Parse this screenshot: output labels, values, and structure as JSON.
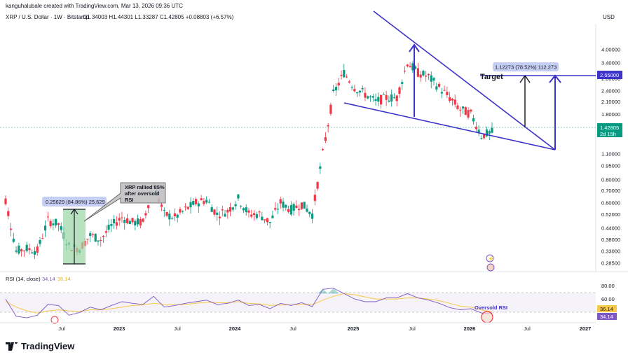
{
  "header": {
    "credit": "kanguhalubale created with TradingView.com, Mar 13, 2026 09:36 UTC",
    "symbol": "XRP / U.S. Dollar · 1W · Bitstamp",
    "ohlc": "O1.34003  H1.44301  L1.33287  C1.42805  +0.08803 (+6.57%)",
    "currency": "USD"
  },
  "chart_data": [
    {
      "type": "candlestick",
      "title": "XRP / U.S. Dollar · 1W · Bitstamp",
      "yscale": "log",
      "ylim": [
        0.26,
        5.5
      ],
      "ytick_labels": [
        "4.00000",
        "3.40000",
        "2.80000",
        "2.40000",
        "2.10000",
        "1.80000",
        "1.50000",
        "1.10000",
        "0.95000",
        "0.80000",
        "0.70000",
        "0.60000",
        "0.52000",
        "0.44000",
        "0.38000",
        "0.33000",
        "0.28500"
      ],
      "xtick_labels": [
        "Jul",
        "2023",
        "Jul",
        "2024",
        "Jul",
        "2025",
        "Jul",
        "2026",
        "Jul",
        "2027"
      ],
      "x": [
        "2022-05",
        "2022-06",
        "2022-07",
        "2022-08",
        "2022-09",
        "2022-10",
        "2022-11",
        "2022-12",
        "2023-01",
        "2023-02",
        "2023-03",
        "2023-04",
        "2023-05",
        "2023-06",
        "2023-07",
        "2023-08",
        "2023-09",
        "2023-10",
        "2023-11",
        "2023-12",
        "2024-01",
        "2024-02",
        "2024-03",
        "2024-04",
        "2024-05",
        "2024-06",
        "2024-07",
        "2024-08",
        "2024-09",
        "2024-10",
        "2024-11",
        "2024-12",
        "2025-01",
        "2025-02",
        "2025-03",
        "2025-04",
        "2025-05",
        "2025-06",
        "2025-07",
        "2025-08",
        "2025-09",
        "2025-10",
        "2025-11",
        "2025-12",
        "2026-01",
        "2026-02",
        "2026-03"
      ],
      "close": [
        0.62,
        0.33,
        0.34,
        0.33,
        0.48,
        0.46,
        0.35,
        0.34,
        0.4,
        0.38,
        0.45,
        0.5,
        0.47,
        0.47,
        0.75,
        0.52,
        0.5,
        0.55,
        0.6,
        0.62,
        0.52,
        0.54,
        0.63,
        0.52,
        0.52,
        0.47,
        0.6,
        0.55,
        0.59,
        0.52,
        1.1,
        2.3,
        3.0,
        2.5,
        2.3,
        2.1,
        2.2,
        2.2,
        3.4,
        3.0,
        2.85,
        2.5,
        2.2,
        1.9,
        1.8,
        1.38,
        1.43
      ],
      "last_price": "1.42805",
      "countdown": "2d 15h",
      "target_price": "2.55000",
      "measure_top": {
        "text": "1.12273 (78.52%) 112,273"
      },
      "measure_left": {
        "text": "0.25629 (84.86%) 25,629"
      },
      "annotations": [
        "XRP rallied 85% after oversold RSI",
        "Target"
      ]
    },
    {
      "type": "line",
      "title": "RSI (14, close)",
      "values_label": [
        "34.14",
        "36.14"
      ],
      "ytick_labels": [
        "80.00",
        "60.00"
      ],
      "series": [
        {
          "values": [
            60,
            28,
            25,
            30,
            50,
            48,
            30,
            35,
            45,
            40,
            48,
            55,
            52,
            50,
            65,
            45,
            48,
            52,
            55,
            58,
            50,
            52,
            58,
            48,
            50,
            42,
            52,
            48,
            53,
            46,
            78,
            80,
            70,
            60,
            55,
            55,
            62,
            62,
            70,
            62,
            58,
            52,
            44,
            40,
            42,
            34,
            34
          ]
        },
        {
          "values": [
            55,
            45,
            38,
            34,
            38,
            40,
            38,
            37,
            40,
            40,
            42,
            45,
            48,
            49,
            52,
            50,
            49,
            50,
            52,
            54,
            53,
            53,
            55,
            52,
            51,
            48,
            49,
            49,
            50,
            49,
            58,
            65,
            70,
            68,
            64,
            60,
            60,
            60,
            62,
            62,
            60,
            57,
            52,
            47,
            45,
            40,
            36
          ]
        }
      ],
      "annotation": "Oversold RSI"
    }
  ],
  "colors": {
    "up": "#089981",
    "down": "#f23645",
    "line": "#5b4ee8",
    "rsi": "#7e57c2",
    "rsi_ma": "#f7c948",
    "target": "#3d33c9"
  },
  "brand": "TradingView"
}
